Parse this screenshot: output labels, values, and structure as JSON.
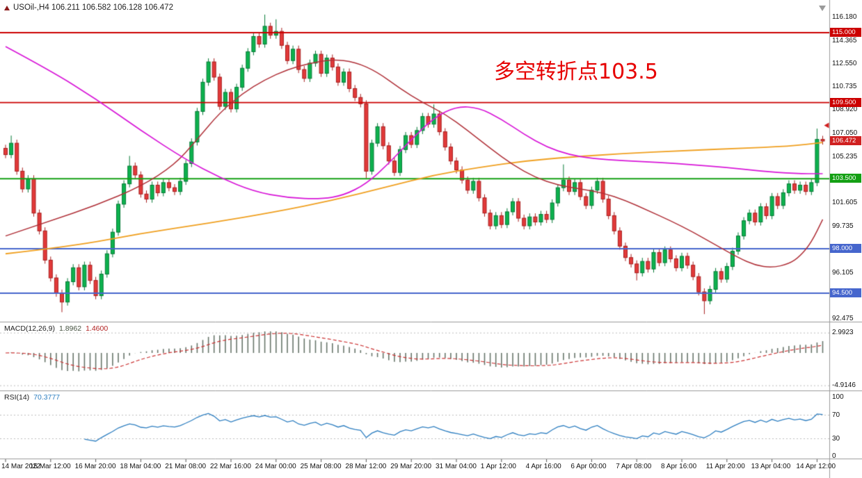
{
  "symbol_bar": {
    "text": "USOil-,H4 106.211 106.582 106.128 106.472"
  },
  "annotation": {
    "text": "多空转折点103.5",
    "color": "#e60000"
  },
  "chart_data": {
    "type": "candlestick",
    "title": "USOil- H4",
    "ohlc_display": {
      "open": "106.211",
      "high": "106.582",
      "low": "106.128",
      "close": "106.472"
    },
    "bars_per_label": 8,
    "time_labels": [
      "14 Mar 2022",
      "15 Mar 12:00",
      "16 Mar 20:00",
      "18 Mar 04:00",
      "21 Mar 08:00",
      "22 Mar 16:00",
      "24 Mar 00:00",
      "25 Mar 08:00",
      "28 Mar 12:00",
      "29 Mar 20:00",
      "31 Mar 04:00",
      "1 Apr 12:00",
      "4 Apr 16:00",
      "6 Apr 00:00",
      "7 Apr 08:00",
      "8 Apr 16:00",
      "11 Apr 20:00",
      "13 Apr 04:00",
      "14 Apr 12:00"
    ],
    "closes": [
      105.4,
      106.3,
      104.1,
      102.7,
      103.5,
      100.8,
      99.4,
      97.1,
      95.7,
      94.5,
      93.8,
      95.4,
      96.5,
      95.0,
      96.7,
      95.5,
      94.3,
      96.0,
      97.6,
      99.3,
      101.5,
      103.1,
      104.5,
      103.8,
      102.3,
      101.9,
      103.0,
      102.4,
      103.2,
      102.8,
      102.5,
      103.3,
      104.7,
      106.4,
      108.8,
      111.1,
      112.7,
      111.5,
      109.2,
      110.3,
      109.0,
      110.7,
      112.2,
      113.5,
      114.7,
      114.1,
      115.5,
      114.8,
      115.1,
      114.0,
      112.8,
      113.7,
      112.1,
      111.4,
      112.6,
      113.3,
      111.8,
      113.0,
      112.3,
      111.1,
      111.9,
      110.6,
      109.9,
      109.4,
      104.1,
      106.3,
      107.6,
      106.1,
      104.9,
      104.0,
      105.8,
      106.9,
      106.2,
      107.3,
      108.4,
      107.8,
      108.6,
      107.2,
      106.0,
      104.9,
      104.2,
      103.4,
      102.6,
      103.3,
      102.0,
      100.8,
      99.8,
      100.6,
      99.9,
      100.9,
      101.7,
      100.4,
      99.8,
      100.5,
      100.1,
      100.7,
      100.3,
      101.6,
      102.8,
      103.4,
      102.5,
      103.2,
      102.1,
      101.4,
      102.6,
      103.3,
      101.9,
      100.6,
      99.4,
      98.2,
      97.3,
      96.8,
      96.1,
      97.0,
      96.4,
      97.7,
      96.9,
      97.9,
      97.2,
      96.5,
      97.4,
      96.7,
      95.8,
      94.6,
      93.9,
      94.8,
      96.2,
      95.6,
      96.6,
      97.8,
      99.0,
      100.2,
      100.8,
      100.1,
      101.3,
      100.6,
      102.1,
      101.4,
      102.4,
      103.1,
      102.6,
      103.0,
      102.5,
      103.2,
      106.6,
      106.47
    ],
    "wick_overrides": {
      "1": {
        "high": 106.9
      },
      "10": {
        "low": 93.0
      },
      "22": {
        "high": 105.3
      },
      "46": {
        "high": 116.42
      },
      "48": {
        "high": 116.05
      },
      "64": {
        "low": 103.55
      },
      "76": {
        "high": 109.35
      },
      "99": {
        "high": 104.63
      },
      "112": {
        "low": 95.5
      },
      "124": {
        "low": 92.85
      },
      "144": {
        "high": 107.45
      }
    },
    "candle_colors": {
      "up_fill": "#0db24e",
      "up_border": "#067a36",
      "down_fill": "#e23a3a",
      "down_border": "#a81f1f"
    },
    "hlines": [
      {
        "price": 115.0,
        "label": "115.000",
        "color": "#cc0000",
        "thickness": 1.8
      },
      {
        "price": 109.5,
        "label": "109.500",
        "color": "#cc0000",
        "thickness": 1.8
      },
      {
        "price": 103.5,
        "label": "103.500",
        "color": "#14a014",
        "thickness": 2
      },
      {
        "price": 98.0,
        "label": "98.000",
        "color": "#4666cd",
        "thickness": 2
      },
      {
        "price": 94.5,
        "label": "94.500",
        "color": "#4666cd",
        "thickness": 2
      }
    ],
    "current_price": {
      "value": 106.472,
      "label": "106.472",
      "color": "#d02020"
    },
    "price_ticks": [
      {
        "value": 116.18,
        "label": "116.180"
      },
      {
        "value": 114.365,
        "label": "114.365"
      },
      {
        "value": 112.55,
        "label": "112.550"
      },
      {
        "value": 110.735,
        "label": "110.735"
      },
      {
        "value": 108.92,
        "label": "108.920"
      },
      {
        "value": 107.05,
        "label": "107.050"
      },
      {
        "value": 105.235,
        "label": "105.235"
      },
      {
        "value": 101.605,
        "label": "101.605"
      },
      {
        "value": 99.735,
        "label": "99.735"
      },
      {
        "value": 96.105,
        "label": "96.105"
      },
      {
        "value": 92.475,
        "label": "92.475"
      }
    ],
    "moving_averages": [
      {
        "name": "ma-long-orange",
        "color": "#f0a020",
        "width": 1.8,
        "anchors": [
          [
            0,
            97.6
          ],
          [
            12,
            98.2
          ],
          [
            24,
            99.2
          ],
          [
            36,
            100.0
          ],
          [
            48,
            100.9
          ],
          [
            58,
            101.8
          ],
          [
            68,
            102.9
          ],
          [
            76,
            103.8
          ],
          [
            84,
            104.4
          ],
          [
            92,
            104.9
          ],
          [
            100,
            105.2
          ],
          [
            110,
            105.5
          ],
          [
            120,
            105.7
          ],
          [
            130,
            105.9
          ],
          [
            139,
            106.05
          ],
          [
            145,
            106.35
          ]
        ]
      },
      {
        "name": "ma-medium-darkred",
        "color": "#b03038",
        "width": 1.5,
        "anchors": [
          [
            0,
            99.0
          ],
          [
            8,
            100.2
          ],
          [
            16,
            101.4
          ],
          [
            24,
            102.9
          ],
          [
            30,
            104.6
          ],
          [
            34,
            106.6
          ],
          [
            38,
            108.7
          ],
          [
            42,
            110.2
          ],
          [
            46,
            111.3
          ],
          [
            50,
            112.1
          ],
          [
            54,
            112.6
          ],
          [
            58,
            112.9
          ],
          [
            62,
            112.7
          ],
          [
            66,
            111.9
          ],
          [
            70,
            110.6
          ],
          [
            74,
            109.5
          ],
          [
            78,
            108.6
          ],
          [
            82,
            107.3
          ],
          [
            86,
            105.9
          ],
          [
            90,
            104.6
          ],
          [
            94,
            103.6
          ],
          [
            98,
            103.0
          ],
          [
            102,
            102.7
          ],
          [
            106,
            102.4
          ],
          [
            110,
            101.8
          ],
          [
            114,
            101.0
          ],
          [
            118,
            100.2
          ],
          [
            122,
            99.3
          ],
          [
            126,
            98.3
          ],
          [
            130,
            97.3
          ],
          [
            133,
            96.7
          ],
          [
            136,
            96.5
          ],
          [
            139,
            96.8
          ],
          [
            141,
            97.4
          ],
          [
            143,
            98.5
          ],
          [
            145,
            100.3
          ]
        ]
      },
      {
        "name": "ma-slow-magenta",
        "color": "#d816d8",
        "width": 1.7,
        "anchors": [
          [
            0,
            113.9
          ],
          [
            8,
            112.0
          ],
          [
            16,
            109.8
          ],
          [
            24,
            107.3
          ],
          [
            32,
            105.0
          ],
          [
            38,
            103.6
          ],
          [
            44,
            102.5
          ],
          [
            50,
            102.0
          ],
          [
            56,
            101.9
          ],
          [
            60,
            102.2
          ],
          [
            64,
            103.1
          ],
          [
            68,
            104.7
          ],
          [
            72,
            106.6
          ],
          [
            76,
            108.3
          ],
          [
            80,
            109.2
          ],
          [
            84,
            109.1
          ],
          [
            88,
            108.2
          ],
          [
            92,
            107.0
          ],
          [
            96,
            106.0
          ],
          [
            100,
            105.4
          ],
          [
            104,
            105.1
          ],
          [
            110,
            104.9
          ],
          [
            116,
            104.8
          ],
          [
            122,
            104.6
          ],
          [
            128,
            104.4
          ],
          [
            134,
            104.1
          ],
          [
            140,
            103.9
          ],
          [
            145,
            103.9
          ]
        ]
      }
    ],
    "macd": {
      "label": "MACD(12,26,9)",
      "value_main": "1.8962",
      "value_signal": "1.4600",
      "params": [
        12,
        26,
        9
      ],
      "axis_max_label": "2.9923",
      "axis_min_label": "-4.9146",
      "histogram_color": "#68766b",
      "signal_color": "#cc3333"
    },
    "rsi": {
      "label": "RSI(14)",
      "value": "70.3777",
      "period": 14,
      "levels": [
        100,
        70,
        30,
        0
      ],
      "level_lines": [
        70,
        30
      ],
      "line_color": "#2e7fc1"
    }
  }
}
